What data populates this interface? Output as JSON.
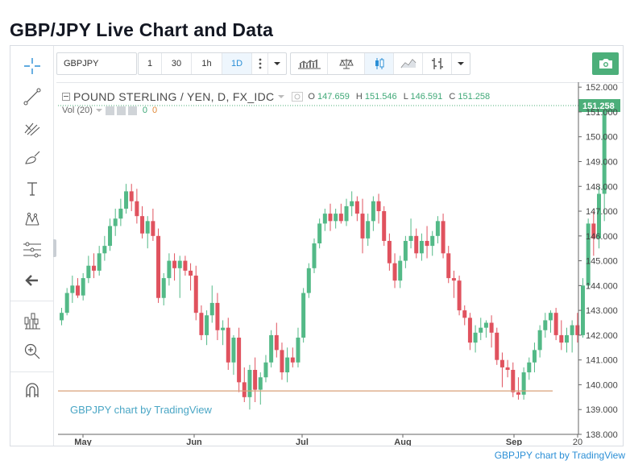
{
  "page": {
    "title": "GBP/JPY Live Chart and Data",
    "footer_link": "GBPJPY chart by TradingView"
  },
  "toolbar": {
    "symbol": "GBPJPY",
    "intervals": [
      "1",
      "30",
      "1h",
      "1D"
    ],
    "active_interval": "1D",
    "icons": [
      "more-vertical-icon",
      "chevron-down-icon",
      "bar-chart-icon",
      "compare-scale-icon",
      "candles-icon",
      "area-chart-icon",
      "bars-style-icon",
      "chevron-down-icon",
      "camera-icon"
    ]
  },
  "sidebar": {
    "tools": [
      "crosshair-icon",
      "trendline-icon",
      "pitchfork-icon",
      "brush-icon",
      "text-icon",
      "pattern-icon",
      "fib-retracement-icon",
      "back-arrow-icon",
      "measure-icon",
      "zoom-icon",
      "magnet-icon"
    ]
  },
  "legend": {
    "symbol": "POUND STERLING / YEN, D, FX_IDC",
    "open_label": "O",
    "open": "147.659",
    "high_label": "H",
    "high": "151.546",
    "low_label": "L",
    "low": "146.591",
    "close_label": "C",
    "close": "151.258",
    "volume": "Vol (20)",
    "volume_value_1": "0",
    "volume_value_2": "0"
  },
  "watermark": "GBPJPY chart by TradingView",
  "colors": {
    "up": "#53b987",
    "down": "#e0525e",
    "last_price": "#4caf7a",
    "support_line": "#d9a27a",
    "accent": "#2b8fd6"
  },
  "chart_data": {
    "type": "candlestick",
    "title": "POUND STERLING / YEN, D, FX_IDC",
    "x_tick_labels": [
      "May",
      "Jun",
      "Jul",
      "Aug",
      "Sep",
      "20"
    ],
    "y_tick_labels": [
      "138.000",
      "139.000",
      "140.000",
      "141.000",
      "142.000",
      "143.000",
      "144.000",
      "145.000",
      "146.000",
      "147.000",
      "148.000",
      "149.000",
      "150.000",
      "151.000",
      "152.000"
    ],
    "ylim": [
      138.0,
      152.2
    ],
    "last_price": 151.258,
    "last_price_label": "151.258",
    "horizontal_line": 139.75,
    "candles": [
      {
        "o": 142.6,
        "h": 143.1,
        "l": 142.4,
        "c": 142.9
      },
      {
        "o": 142.9,
        "h": 143.9,
        "l": 142.8,
        "c": 143.7
      },
      {
        "o": 143.7,
        "h": 144.4,
        "l": 143.3,
        "c": 144.0
      },
      {
        "o": 144.0,
        "h": 144.3,
        "l": 143.5,
        "c": 143.6
      },
      {
        "o": 143.6,
        "h": 144.5,
        "l": 143.4,
        "c": 144.3
      },
      {
        "o": 144.3,
        "h": 145.2,
        "l": 144.1,
        "c": 144.8
      },
      {
        "o": 144.8,
        "h": 145.3,
        "l": 144.3,
        "c": 144.6
      },
      {
        "o": 144.6,
        "h": 145.6,
        "l": 144.4,
        "c": 145.3
      },
      {
        "o": 145.3,
        "h": 146.0,
        "l": 145.0,
        "c": 145.6
      },
      {
        "o": 145.6,
        "h": 146.7,
        "l": 145.4,
        "c": 146.4
      },
      {
        "o": 146.4,
        "h": 147.1,
        "l": 146.0,
        "c": 146.7
      },
      {
        "o": 146.7,
        "h": 147.5,
        "l": 146.4,
        "c": 147.1
      },
      {
        "o": 147.1,
        "h": 148.1,
        "l": 146.9,
        "c": 147.8
      },
      {
        "o": 147.8,
        "h": 148.1,
        "l": 147.0,
        "c": 147.4
      },
      {
        "o": 147.4,
        "h": 147.9,
        "l": 146.5,
        "c": 146.8
      },
      {
        "o": 146.8,
        "h": 147.2,
        "l": 145.9,
        "c": 146.1
      },
      {
        "o": 146.1,
        "h": 146.8,
        "l": 145.5,
        "c": 146.6
      },
      {
        "o": 146.6,
        "h": 147.1,
        "l": 145.8,
        "c": 146.0
      },
      {
        "o": 146.0,
        "h": 146.3,
        "l": 143.3,
        "c": 143.5
      },
      {
        "o": 143.5,
        "h": 144.5,
        "l": 143.2,
        "c": 144.3
      },
      {
        "o": 144.3,
        "h": 145.3,
        "l": 144.0,
        "c": 145.0
      },
      {
        "o": 145.0,
        "h": 145.3,
        "l": 144.2,
        "c": 144.7
      },
      {
        "o": 144.7,
        "h": 145.2,
        "l": 143.5,
        "c": 145.0
      },
      {
        "o": 145.0,
        "h": 145.2,
        "l": 144.4,
        "c": 144.6
      },
      {
        "o": 144.6,
        "h": 144.9,
        "l": 143.8,
        "c": 144.4
      },
      {
        "o": 144.4,
        "h": 144.8,
        "l": 142.6,
        "c": 142.9
      },
      {
        "o": 142.9,
        "h": 143.2,
        "l": 141.8,
        "c": 142.0
      },
      {
        "o": 142.0,
        "h": 143.0,
        "l": 141.6,
        "c": 142.8
      },
      {
        "o": 142.8,
        "h": 144.0,
        "l": 142.5,
        "c": 143.3
      },
      {
        "o": 143.3,
        "h": 143.7,
        "l": 141.8,
        "c": 142.2
      },
      {
        "o": 142.2,
        "h": 142.6,
        "l": 141.6,
        "c": 142.3
      },
      {
        "o": 142.3,
        "h": 142.7,
        "l": 140.6,
        "c": 140.9
      },
      {
        "o": 140.9,
        "h": 142.0,
        "l": 140.4,
        "c": 141.9
      },
      {
        "o": 141.9,
        "h": 142.3,
        "l": 139.7,
        "c": 140.1
      },
      {
        "o": 140.1,
        "h": 140.7,
        "l": 139.3,
        "c": 139.5
      },
      {
        "o": 139.5,
        "h": 140.8,
        "l": 139.0,
        "c": 140.6
      },
      {
        "o": 140.6,
        "h": 141.1,
        "l": 139.3,
        "c": 139.8
      },
      {
        "o": 139.8,
        "h": 140.5,
        "l": 139.2,
        "c": 140.3
      },
      {
        "o": 140.3,
        "h": 141.2,
        "l": 140.1,
        "c": 140.9
      },
      {
        "o": 140.9,
        "h": 142.2,
        "l": 140.7,
        "c": 142.0
      },
      {
        "o": 142.0,
        "h": 142.5,
        "l": 141.1,
        "c": 141.4
      },
      {
        "o": 141.4,
        "h": 141.7,
        "l": 140.2,
        "c": 140.5
      },
      {
        "o": 140.5,
        "h": 141.5,
        "l": 140.1,
        "c": 141.1
      },
      {
        "o": 141.1,
        "h": 141.5,
        "l": 140.7,
        "c": 140.9
      },
      {
        "o": 140.9,
        "h": 142.3,
        "l": 140.7,
        "c": 141.9
      },
      {
        "o": 141.9,
        "h": 143.9,
        "l": 141.7,
        "c": 143.7
      },
      {
        "o": 143.7,
        "h": 144.9,
        "l": 143.5,
        "c": 144.7
      },
      {
        "o": 144.7,
        "h": 145.9,
        "l": 144.5,
        "c": 145.7
      },
      {
        "o": 145.7,
        "h": 146.7,
        "l": 145.5,
        "c": 146.5
      },
      {
        "o": 146.5,
        "h": 147.1,
        "l": 146.2,
        "c": 146.9
      },
      {
        "o": 146.9,
        "h": 147.3,
        "l": 146.2,
        "c": 146.6
      },
      {
        "o": 146.6,
        "h": 147.1,
        "l": 146.3,
        "c": 146.9
      },
      {
        "o": 146.9,
        "h": 147.3,
        "l": 146.5,
        "c": 146.6
      },
      {
        "o": 146.6,
        "h": 147.5,
        "l": 146.4,
        "c": 147.2
      },
      {
        "o": 147.2,
        "h": 147.8,
        "l": 146.8,
        "c": 147.4
      },
      {
        "o": 147.4,
        "h": 147.6,
        "l": 146.6,
        "c": 146.9
      },
      {
        "o": 146.9,
        "h": 147.5,
        "l": 145.3,
        "c": 145.9
      },
      {
        "o": 145.9,
        "h": 146.9,
        "l": 145.6,
        "c": 146.6
      },
      {
        "o": 146.6,
        "h": 147.6,
        "l": 146.2,
        "c": 147.4
      },
      {
        "o": 147.4,
        "h": 147.7,
        "l": 146.5,
        "c": 147.0
      },
      {
        "o": 147.0,
        "h": 147.2,
        "l": 145.6,
        "c": 145.8
      },
      {
        "o": 145.8,
        "h": 146.1,
        "l": 144.6,
        "c": 144.9
      },
      {
        "o": 144.9,
        "h": 145.3,
        "l": 143.9,
        "c": 144.2
      },
      {
        "o": 144.2,
        "h": 145.2,
        "l": 143.9,
        "c": 145.0
      },
      {
        "o": 145.0,
        "h": 146.0,
        "l": 144.7,
        "c": 145.8
      },
      {
        "o": 145.8,
        "h": 146.7,
        "l": 145.5,
        "c": 146.0
      },
      {
        "o": 146.0,
        "h": 146.3,
        "l": 145.1,
        "c": 145.3
      },
      {
        "o": 145.3,
        "h": 146.1,
        "l": 145.0,
        "c": 145.8
      },
      {
        "o": 145.8,
        "h": 146.4,
        "l": 145.1,
        "c": 145.6
      },
      {
        "o": 145.6,
        "h": 146.2,
        "l": 145.2,
        "c": 146.0
      },
      {
        "o": 146.0,
        "h": 146.8,
        "l": 145.7,
        "c": 146.6
      },
      {
        "o": 146.6,
        "h": 146.9,
        "l": 145.1,
        "c": 145.3
      },
      {
        "o": 145.3,
        "h": 145.6,
        "l": 144.1,
        "c": 144.3
      },
      {
        "o": 144.3,
        "h": 144.6,
        "l": 143.5,
        "c": 144.2
      },
      {
        "o": 144.2,
        "h": 144.4,
        "l": 142.8,
        "c": 143.0
      },
      {
        "o": 143.0,
        "h": 143.2,
        "l": 142.4,
        "c": 142.7
      },
      {
        "o": 142.7,
        "h": 142.9,
        "l": 141.4,
        "c": 141.7
      },
      {
        "o": 141.7,
        "h": 142.4,
        "l": 141.3,
        "c": 142.1
      },
      {
        "o": 142.1,
        "h": 142.7,
        "l": 141.8,
        "c": 142.3
      },
      {
        "o": 142.3,
        "h": 142.6,
        "l": 141.9,
        "c": 142.5
      },
      {
        "o": 142.5,
        "h": 142.8,
        "l": 141.5,
        "c": 142.1
      },
      {
        "o": 142.1,
        "h": 142.3,
        "l": 140.8,
        "c": 141.0
      },
      {
        "o": 141.0,
        "h": 141.3,
        "l": 139.9,
        "c": 140.7
      },
      {
        "o": 140.7,
        "h": 141.0,
        "l": 140.3,
        "c": 140.6
      },
      {
        "o": 140.6,
        "h": 140.9,
        "l": 139.5,
        "c": 139.7
      },
      {
        "o": 139.7,
        "h": 140.3,
        "l": 139.4,
        "c": 139.6
      },
      {
        "o": 139.6,
        "h": 140.7,
        "l": 139.4,
        "c": 140.5
      },
      {
        "o": 140.5,
        "h": 141.1,
        "l": 140.2,
        "c": 140.9
      },
      {
        "o": 140.9,
        "h": 141.7,
        "l": 140.5,
        "c": 141.4
      },
      {
        "o": 141.4,
        "h": 142.4,
        "l": 141.1,
        "c": 142.2
      },
      {
        "o": 142.2,
        "h": 142.9,
        "l": 141.9,
        "c": 142.6
      },
      {
        "o": 142.6,
        "h": 143.0,
        "l": 142.1,
        "c": 142.9
      },
      {
        "o": 142.9,
        "h": 143.1,
        "l": 141.8,
        "c": 142.0
      },
      {
        "o": 142.0,
        "h": 142.6,
        "l": 141.4,
        "c": 141.7
      },
      {
        "o": 141.7,
        "h": 142.3,
        "l": 141.3,
        "c": 142.0
      },
      {
        "o": 142.0,
        "h": 142.6,
        "l": 141.3,
        "c": 142.4
      },
      {
        "o": 142.4,
        "h": 142.9,
        "l": 141.7,
        "c": 142.0
      },
      {
        "o": 142.0,
        "h": 144.3,
        "l": 141.9,
        "c": 144.0
      },
      {
        "o": 144.0,
        "h": 146.7,
        "l": 143.9,
        "c": 146.5
      },
      {
        "o": 146.5,
        "h": 147.0,
        "l": 145.2,
        "c": 145.9
      },
      {
        "o": 145.9,
        "h": 148.0,
        "l": 145.5,
        "c": 147.7
      },
      {
        "o": 147.7,
        "h": 151.5,
        "l": 146.6,
        "c": 151.3
      }
    ]
  }
}
